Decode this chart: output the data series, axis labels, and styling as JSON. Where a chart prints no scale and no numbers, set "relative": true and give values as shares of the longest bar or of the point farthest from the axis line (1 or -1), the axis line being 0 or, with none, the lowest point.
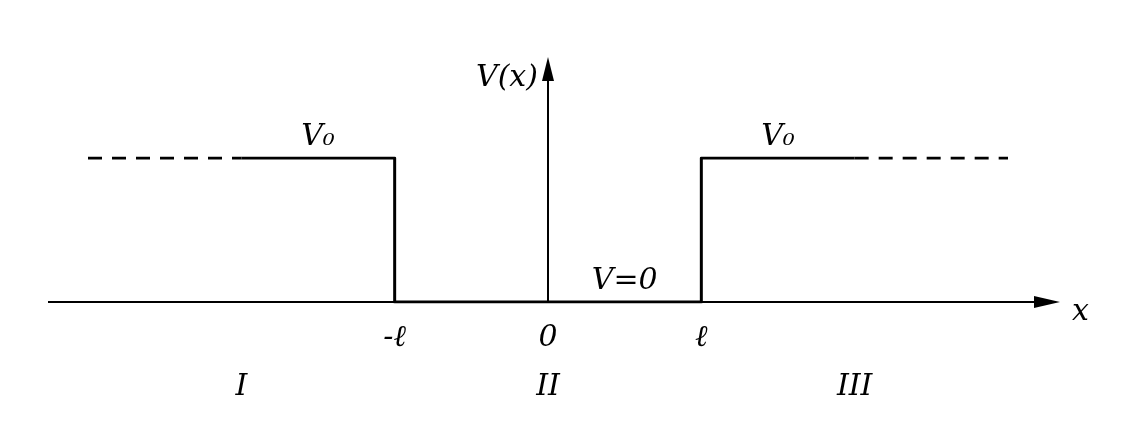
{
  "chart_data": {
    "type": "step",
    "relative": true,
    "xlabel": "x",
    "ylabel": "V(x)",
    "categories": [
      null,
      null,
      "-ℓ",
      "0",
      "ℓ",
      null,
      null
    ],
    "series": [
      {
        "values": [
          null,
          1,
          0,
          0,
          1,
          1,
          null
        ],
        "color": "#000000",
        "line_style": "solid"
      },
      {
        "values": [
          1,
          1,
          null,
          null,
          null,
          null,
          null
        ],
        "color": "#000000",
        "line_style": "dashed"
      },
      {
        "values": [
          null,
          null,
          null,
          null,
          null,
          1,
          1
        ],
        "color": "#000000",
        "line_style": "dashed"
      }
    ],
    "annotations": [
      {
        "text": "V₀",
        "y": 1
      },
      {
        "text": "V₀",
        "x": "ℓ",
        "y": 1
      },
      {
        "text": "V=0",
        "x": "0",
        "y": 0
      },
      "I",
      "II",
      "III"
    ],
    "legend": false,
    "marker": "none"
  }
}
